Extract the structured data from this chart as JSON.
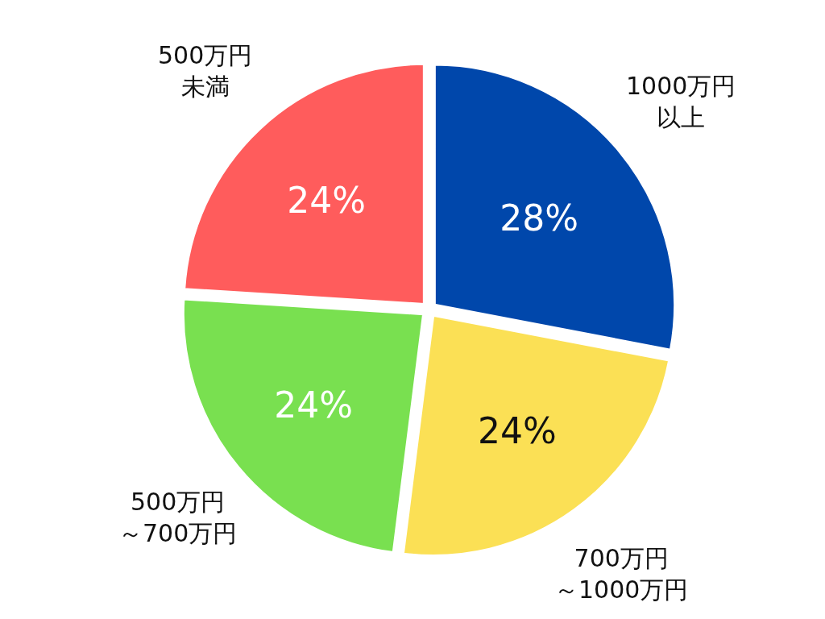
{
  "chart_data": {
    "type": "pie",
    "categories": [
      "1000万円以上",
      "700万円～1000万円",
      "500万円～700万円",
      "500万円未満"
    ],
    "values": [
      28,
      24,
      24,
      24
    ],
    "colors": [
      "#0047ab",
      "#fbe055",
      "#79e050",
      "#ff5c5c"
    ],
    "value_labels": [
      "28%",
      "24%",
      "24%",
      "24%"
    ],
    "legend": false
  }
}
